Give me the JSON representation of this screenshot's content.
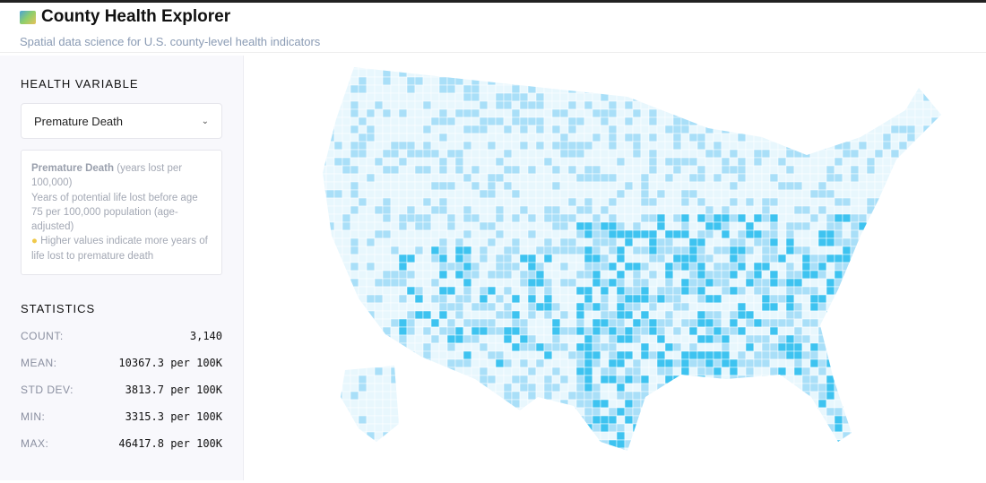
{
  "header": {
    "title": "County Health Explorer",
    "subtitle": "Spatial data science for U.S. county-level health indicators",
    "icon": "world-map-icon"
  },
  "sidebar": {
    "variable_heading": "HEALTH VARIABLE",
    "selected_variable": "Premature Death",
    "info": {
      "name": "Premature Death",
      "unit": " (years lost per 100,000)",
      "description": "Years of potential life lost before age 75 per 100,000 population (age-adjusted)",
      "hint": "Higher values indicate more years of life lost to premature death",
      "hint_icon": "lightbulb-icon"
    },
    "stats_heading": "STATISTICS",
    "stats": [
      {
        "label": "COUNT:",
        "value": "3,140"
      },
      {
        "label": "MEAN:",
        "value": "10367.3 per 100K"
      },
      {
        "label": "STD DEV:",
        "value": "3813.7 per 100K"
      },
      {
        "label": "MIN:",
        "value": "3315.3 per 100K"
      },
      {
        "label": "MAX:",
        "value": "46417.8 per 100K"
      }
    ]
  },
  "map": {
    "colors": {
      "low": "#e8f7fd",
      "mid": "#a9dff8",
      "high": "#3ec3f0"
    }
  }
}
